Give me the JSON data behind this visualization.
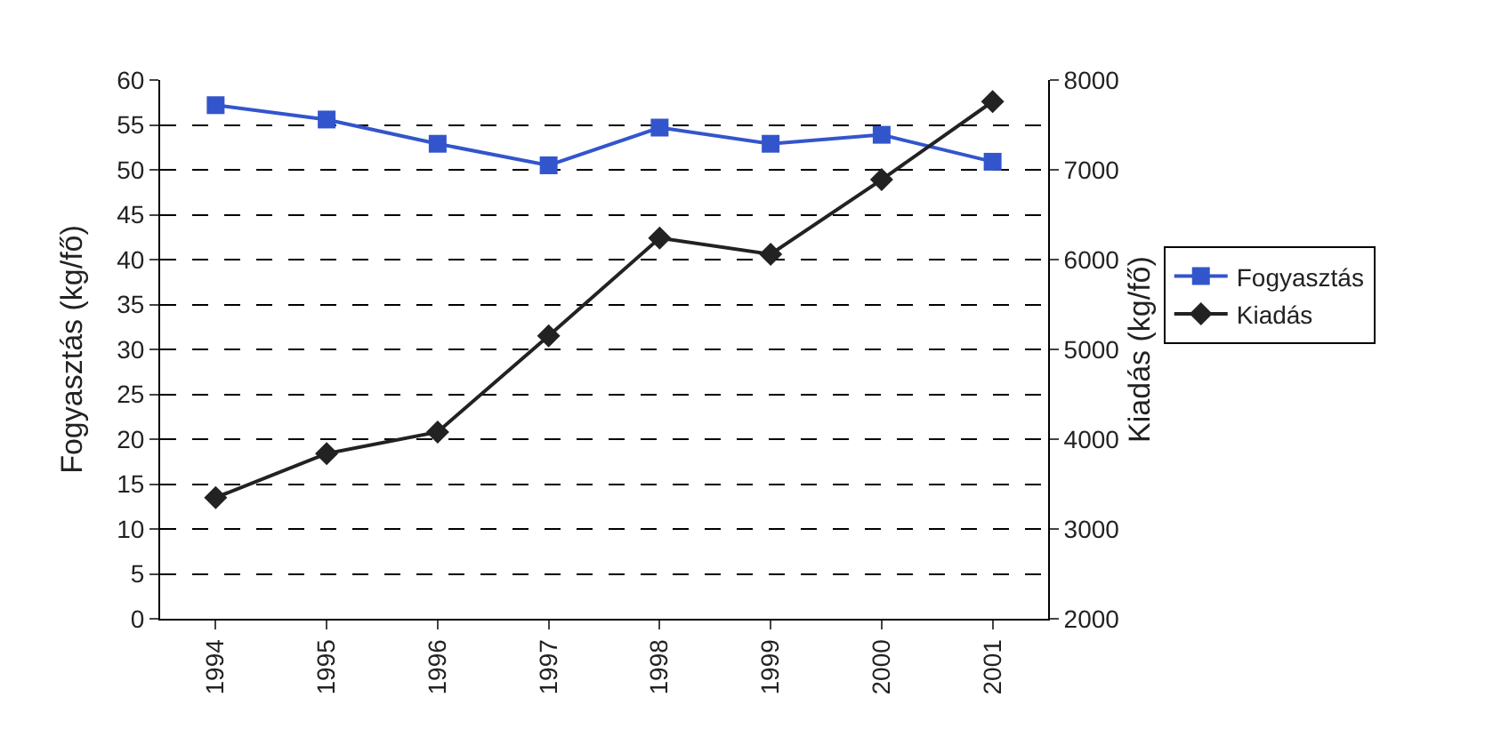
{
  "chart_data": {
    "type": "line",
    "categories": [
      "1994",
      "1995",
      "1996",
      "1997",
      "1998",
      "1999",
      "2000",
      "2001"
    ],
    "ylabel": "Fogyasztás (kg/fő)",
    "y2label": "Kiadás (kg/fő)",
    "ylim": [
      0,
      60
    ],
    "yticks": [
      0,
      5,
      10,
      15,
      20,
      25,
      30,
      35,
      40,
      45,
      50,
      55,
      60
    ],
    "y2lim": [
      2000,
      8000
    ],
    "y2ticks": [
      2000,
      3000,
      4000,
      5000,
      6000,
      7000,
      8000
    ],
    "grid": "y",
    "legend": "right",
    "series": [
      {
        "name": "Fogyasztás",
        "color": "#3355cc",
        "marker": "square",
        "values": [
          57.2,
          55.6,
          52.9,
          50.5,
          54.7,
          52.9,
          53.9,
          50.9
        ]
      },
      {
        "name": "Kiadás",
        "color": "#222222",
        "marker": "diamond",
        "axis": "y2",
        "values": [
          3350,
          3840,
          4080,
          5150,
          6240,
          6060,
          6890,
          7760
        ]
      }
    ]
  }
}
